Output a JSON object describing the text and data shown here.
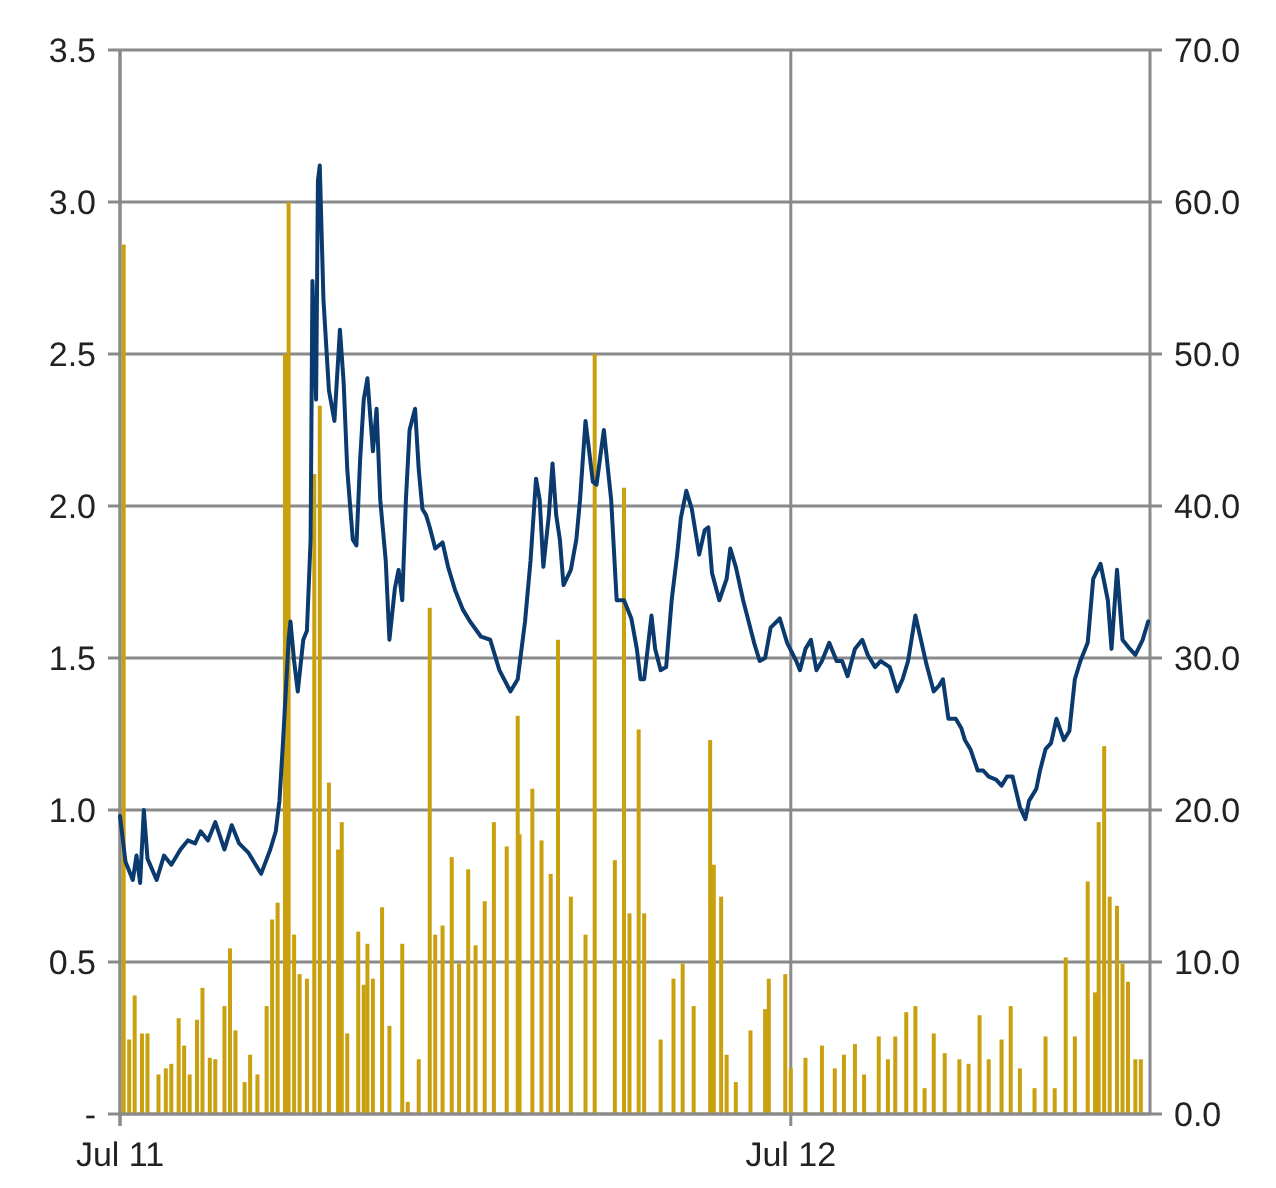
{
  "chart_data": {
    "type": "line",
    "xlim": [
      "2011-07-01",
      "2013-01-13"
    ],
    "xticks": [
      {
        "value": "2011-07-01",
        "label": "Jul 11"
      },
      {
        "value": "2012-07-01",
        "label": "Jul 12"
      }
    ],
    "ylim": [
      0,
      3.5
    ],
    "yticks": [
      {
        "value": 0,
        "label": "-"
      },
      {
        "value": 0.5,
        "label": "0.5"
      },
      {
        "value": 1,
        "label": "1.0"
      },
      {
        "value": 1.5,
        "label": "1.5"
      },
      {
        "value": 2,
        "label": "2.0"
      },
      {
        "value": 2.5,
        "label": "2.5"
      },
      {
        "value": 3,
        "label": "3.0"
      },
      {
        "value": 3.5,
        "label": "3.5"
      }
    ],
    "y2lim": [
      0,
      70
    ],
    "y2ticks": [
      {
        "value": 0,
        "label": "0.0"
      },
      {
        "value": 10,
        "label": "10.0"
      },
      {
        "value": 20,
        "label": "20.0"
      },
      {
        "value": 30,
        "label": "30.0"
      },
      {
        "value": 40,
        "label": "40.0"
      },
      {
        "value": 50,
        "label": "50.0"
      },
      {
        "value": 60,
        "label": "60.0"
      },
      {
        "value": 70,
        "label": "70.0"
      }
    ],
    "grid": true,
    "series": [
      {
        "type": "bar",
        "axis": "y2",
        "color": "#c9a00e",
        "x": [
          "2011-07-03",
          "2011-07-06",
          "2011-07-09",
          "2011-07-13",
          "2011-07-16",
          "2011-07-22",
          "2011-07-26",
          "2011-07-29",
          "2011-08-02",
          "2011-08-05",
          "2011-08-08",
          "2011-08-12",
          "2011-08-15",
          "2011-08-19",
          "2011-08-22",
          "2011-08-27",
          "2011-08-30",
          "2011-09-02",
          "2011-09-07",
          "2011-09-10",
          "2011-09-14",
          "2011-09-19",
          "2011-09-22",
          "2011-09-25",
          "2011-09-29",
          "2011-10-01",
          "2011-10-04",
          "2011-10-07",
          "2011-10-11",
          "2011-10-15",
          "2011-10-18",
          "2011-10-23",
          "2011-10-28",
          "2011-10-30",
          "2011-11-02",
          "2011-11-08",
          "2011-11-11",
          "2011-11-13",
          "2011-11-16",
          "2011-11-21",
          "2011-11-25",
          "2011-12-02",
          "2011-12-05",
          "2011-12-11",
          "2011-12-17",
          "2011-12-20",
          "2011-12-24",
          "2011-12-29",
          "2012-01-02",
          "2012-01-07",
          "2012-01-11",
          "2012-01-16",
          "2012-01-21",
          "2012-01-28",
          "2012-02-03",
          "2012-02-04",
          "2012-02-11",
          "2012-02-16",
          "2012-02-21",
          "2012-02-25",
          "2012-03-03",
          "2012-03-11",
          "2012-03-16",
          "2012-03-27",
          "2012-04-01",
          "2012-04-04",
          "2012-04-09",
          "2012-04-12",
          "2012-04-21",
          "2012-04-28",
          "2012-05-03",
          "2012-05-09",
          "2012-05-18",
          "2012-05-20",
          "2012-05-24",
          "2012-05-27",
          "2012-06-01",
          "2012-06-09",
          "2012-06-17",
          "2012-06-19",
          "2012-06-28",
          "2012-07-01",
          "2012-07-09",
          "2012-07-18",
          "2012-07-25",
          "2012-07-30",
          "2012-08-05",
          "2012-08-10",
          "2012-08-18",
          "2012-08-23",
          "2012-08-27",
          "2012-09-02",
          "2012-09-07",
          "2012-09-12",
          "2012-09-17",
          "2012-09-23",
          "2012-10-01",
          "2012-10-06",
          "2012-10-12",
          "2012-10-17",
          "2012-10-24",
          "2012-10-29",
          "2012-11-03",
          "2012-11-11",
          "2012-11-17",
          "2012-11-22",
          "2012-11-28",
          "2012-12-03",
          "2012-12-10",
          "2012-12-14",
          "2012-12-16",
          "2012-12-19",
          "2012-12-22",
          "2012-12-26",
          "2012-12-29",
          "2013-01-01",
          "2013-01-05",
          "2013-01-08"
        ],
        "values": [
          57.2,
          4.9,
          7.8,
          5.3,
          5.3,
          2.6,
          3.0,
          3.3,
          6.3,
          4.5,
          2.6,
          6.2,
          8.3,
          3.7,
          3.6,
          7.1,
          10.9,
          5.5,
          2.1,
          3.9,
          2.6,
          7.1,
          12.8,
          13.9,
          50.0,
          60.0,
          11.8,
          9.2,
          8.9,
          42.1,
          46.6,
          21.8,
          17.4,
          19.2,
          5.3,
          12.0,
          8.5,
          11.2,
          8.9,
          13.6,
          5.8,
          11.2,
          0.8,
          3.6,
          33.3,
          11.8,
          12.4,
          16.9,
          9.9,
          16.1,
          11.1,
          14.0,
          19.2,
          17.6,
          26.2,
          18.4,
          21.4,
          18.0,
          15.8,
          31.2,
          14.3,
          11.8,
          50.0,
          16.7,
          41.2,
          13.2,
          25.3,
          13.2,
          4.9,
          8.9,
          9.9,
          7.1,
          24.6,
          16.4,
          14.3,
          3.9,
          2.1,
          5.5,
          6.9,
          8.9,
          9.2,
          3.0,
          3.7,
          4.5,
          3.0,
          3.9,
          4.6,
          2.6,
          5.1,
          3.6,
          5.1,
          6.7,
          7.1,
          1.7,
          5.3,
          4.0,
          3.6,
          3.3,
          6.5,
          3.6,
          4.9,
          7.1,
          3.0,
          1.7,
          5.1,
          1.7,
          10.3,
          5.1,
          15.3,
          8.0,
          19.2,
          24.2,
          14.3,
          13.7,
          9.9,
          8.7,
          3.6,
          3.6
        ]
      },
      {
        "axis": "y",
        "color": "#0b3a6e",
        "x": [
          "2011-07-01",
          "2011-07-04",
          "2011-07-08",
          "2011-07-10",
          "2011-07-12",
          "2011-07-14",
          "2011-07-16",
          "2011-07-21",
          "2011-07-25",
          "2011-07-29",
          "2011-08-03",
          "2011-08-07",
          "2011-08-11",
          "2011-08-14",
          "2011-08-18",
          "2011-08-22",
          "2011-08-27",
          "2011-08-31",
          "2011-09-04",
          "2011-09-09",
          "2011-09-13",
          "2011-09-16",
          "2011-09-21",
          "2011-09-24",
          "2011-09-26",
          "2011-09-28",
          "2011-10-01",
          "2011-10-02",
          "2011-10-04",
          "2011-10-06",
          "2011-10-09",
          "2011-10-11",
          "2011-10-13",
          "2011-10-14",
          "2011-10-16",
          "2011-10-17",
          "2011-10-18",
          "2011-10-20",
          "2011-10-23",
          "2011-10-26",
          "2011-10-29",
          "2011-10-31",
          "2011-11-02",
          "2011-11-05",
          "2011-11-07",
          "2011-11-09",
          "2011-11-11",
          "2011-11-13",
          "2011-11-16",
          "2011-11-18",
          "2011-11-20",
          "2011-11-23",
          "2011-11-25",
          "2011-11-28",
          "2011-11-30",
          "2011-12-02",
          "2011-12-04",
          "2011-12-06",
          "2011-12-09",
          "2011-12-11",
          "2011-12-13",
          "2011-12-15",
          "2011-12-17",
          "2011-12-20",
          "2011-12-24",
          "2011-12-27",
          "2011-12-31",
          "2012-01-04",
          "2012-01-08",
          "2012-01-14",
          "2012-01-19",
          "2012-01-24",
          "2012-01-30",
          "2012-02-03",
          "2012-02-07",
          "2012-02-10",
          "2012-02-13",
          "2012-02-15",
          "2012-02-17",
          "2012-02-20",
          "2012-02-22",
          "2012-02-24",
          "2012-02-26",
          "2012-02-28",
          "2012-03-03",
          "2012-03-06",
          "2012-03-08",
          "2012-03-11",
          "2012-03-13",
          "2012-03-15",
          "2012-03-17",
          "2012-03-19",
          "2012-03-21",
          "2012-03-25",
          "2012-03-28",
          "2012-04-01",
          "2012-04-05",
          "2012-04-08",
          "2012-04-10",
          "2012-04-12",
          "2012-04-16",
          "2012-04-18",
          "2012-04-21",
          "2012-04-24",
          "2012-04-27",
          "2012-04-30",
          "2012-05-02",
          "2012-05-05",
          "2012-05-08",
          "2012-05-12",
          "2012-05-15",
          "2012-05-17",
          "2012-05-19",
          "2012-05-23",
          "2012-05-27",
          "2012-05-29",
          "2012-06-01",
          "2012-06-05",
          "2012-06-11",
          "2012-06-14",
          "2012-06-17",
          "2012-06-20",
          "2012-06-25",
          "2012-06-29",
          "2012-07-04",
          "2012-07-06",
          "2012-07-09",
          "2012-07-12",
          "2012-07-15",
          "2012-07-18",
          "2012-07-22",
          "2012-07-26",
          "2012-07-29",
          "2012-08-01",
          "2012-08-05",
          "2012-08-09",
          "2012-08-12",
          "2012-08-16",
          "2012-08-19",
          "2012-08-24",
          "2012-08-28",
          "2012-08-31",
          "2012-09-03",
          "2012-09-07",
          "2012-09-10",
          "2012-09-13",
          "2012-09-17",
          "2012-09-20",
          "2012-09-22",
          "2012-09-25",
          "2012-09-29",
          "2012-10-02",
          "2012-10-04",
          "2012-10-07",
          "2012-10-11",
          "2012-10-14",
          "2012-10-17",
          "2012-10-21",
          "2012-10-24",
          "2012-10-27",
          "2012-10-30",
          "2012-11-03",
          "2012-11-06",
          "2012-11-08",
          "2012-11-12",
          "2012-11-14",
          "2012-11-17",
          "2012-11-20",
          "2012-11-23",
          "2012-11-27",
          "2012-11-30",
          "2012-12-03",
          "2012-12-06",
          "2012-12-10",
          "2012-12-13",
          "2012-12-17",
          "2012-12-21",
          "2012-12-23",
          "2012-12-26",
          "2012-12-29",
          "2013-01-02",
          "2013-01-05",
          "2013-01-09",
          "2013-01-12"
        ],
        "values": [
          0.98,
          0.83,
          0.77,
          0.85,
          0.76,
          1.0,
          0.84,
          0.77,
          0.85,
          0.82,
          0.87,
          0.9,
          0.89,
          0.93,
          0.9,
          0.96,
          0.87,
          0.95,
          0.89,
          0.86,
          0.82,
          0.79,
          0.87,
          0.93,
          1.03,
          1.23,
          1.56,
          1.62,
          1.49,
          1.39,
          1.56,
          1.59,
          1.89,
          2.74,
          2.35,
          3.07,
          3.12,
          2.68,
          2.38,
          2.28,
          2.58,
          2.41,
          2.12,
          1.89,
          1.87,
          2.15,
          2.35,
          2.42,
          2.18,
          2.32,
          2.02,
          1.82,
          1.56,
          1.73,
          1.79,
          1.69,
          2.02,
          2.25,
          2.32,
          2.12,
          1.99,
          1.97,
          1.93,
          1.86,
          1.88,
          1.8,
          1.72,
          1.66,
          1.62,
          1.57,
          1.56,
          1.46,
          1.39,
          1.43,
          1.62,
          1.82,
          2.09,
          2.02,
          1.8,
          1.97,
          2.14,
          1.97,
          1.89,
          1.74,
          1.79,
          1.89,
          2.02,
          2.28,
          2.18,
          2.08,
          2.07,
          2.16,
          2.25,
          2.02,
          1.69,
          1.69,
          1.63,
          1.53,
          1.43,
          1.43,
          1.64,
          1.53,
          1.46,
          1.47,
          1.69,
          1.84,
          1.96,
          2.05,
          1.99,
          1.84,
          1.92,
          1.93,
          1.78,
          1.69,
          1.76,
          1.86,
          1.8,
          1.69,
          1.55,
          1.49,
          1.5,
          1.6,
          1.63,
          1.55,
          1.49,
          1.46,
          1.53,
          1.56,
          1.46,
          1.49,
          1.55,
          1.49,
          1.49,
          1.44,
          1.53,
          1.56,
          1.51,
          1.47,
          1.49,
          1.47,
          1.39,
          1.43,
          1.49,
          1.64,
          1.56,
          1.48,
          1.39,
          1.41,
          1.43,
          1.3,
          1.3,
          1.27,
          1.23,
          1.2,
          1.13,
          1.13,
          1.11,
          1.1,
          1.08,
          1.11,
          1.11,
          1.01,
          0.97,
          1.03,
          1.07,
          1.13,
          1.2,
          1.22,
          1.3,
          1.23,
          1.26,
          1.43,
          1.49,
          1.55,
          1.76,
          1.81,
          1.69,
          1.53,
          1.79,
          1.56,
          1.53,
          1.51,
          1.56,
          1.62
        ]
      }
    ]
  }
}
